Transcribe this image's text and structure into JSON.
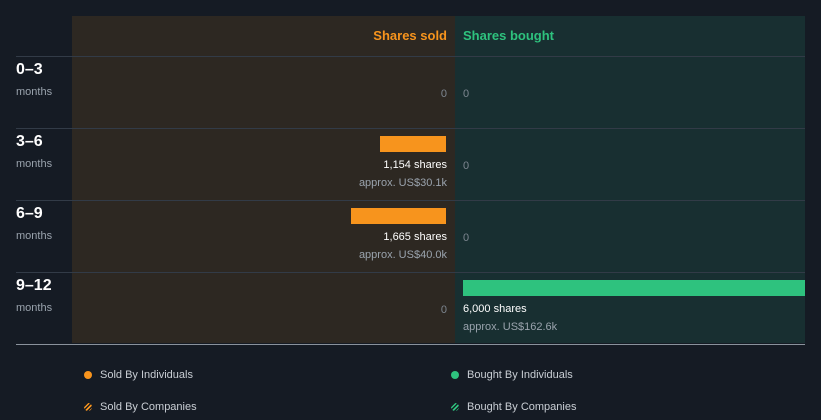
{
  "chart_data": {
    "type": "bar",
    "columns": {
      "sold": "Shares sold",
      "bought": "Shares bought"
    },
    "rows": [
      {
        "range": "0–3",
        "unit": "months",
        "sold": {
          "shares": 0,
          "label": "0",
          "approx": ""
        },
        "bought": {
          "shares": 0,
          "label": "0",
          "approx": ""
        }
      },
      {
        "range": "3–6",
        "unit": "months",
        "sold": {
          "shares": 1154,
          "label": "1,154 shares",
          "approx": "approx. US$30.1k"
        },
        "bought": {
          "shares": 0,
          "label": "0",
          "approx": ""
        }
      },
      {
        "range": "6–9",
        "unit": "months",
        "sold": {
          "shares": 1665,
          "label": "1,665 shares",
          "approx": "approx. US$40.0k"
        },
        "bought": {
          "shares": 0,
          "label": "0",
          "approx": ""
        }
      },
      {
        "range": "9–12",
        "unit": "months",
        "sold": {
          "shares": 0,
          "label": "0",
          "approx": ""
        },
        "bought": {
          "shares": 6000,
          "label": "6,000 shares",
          "approx": "approx. US$162.6k"
        }
      }
    ],
    "max_shares": 6000,
    "colors": {
      "sold": "#f7941d",
      "bought": "#2ec27e"
    },
    "legend": [
      {
        "label": "Sold By Individuals",
        "color": "#f7941d",
        "style": "solid"
      },
      {
        "label": "Bought By Individuals",
        "color": "#2ec27e",
        "style": "solid"
      },
      {
        "label": "Sold By Companies",
        "color": "#f7941d",
        "style": "hatched"
      },
      {
        "label": "Bought By Companies",
        "color": "#2ec27e",
        "style": "hatched"
      }
    ]
  }
}
